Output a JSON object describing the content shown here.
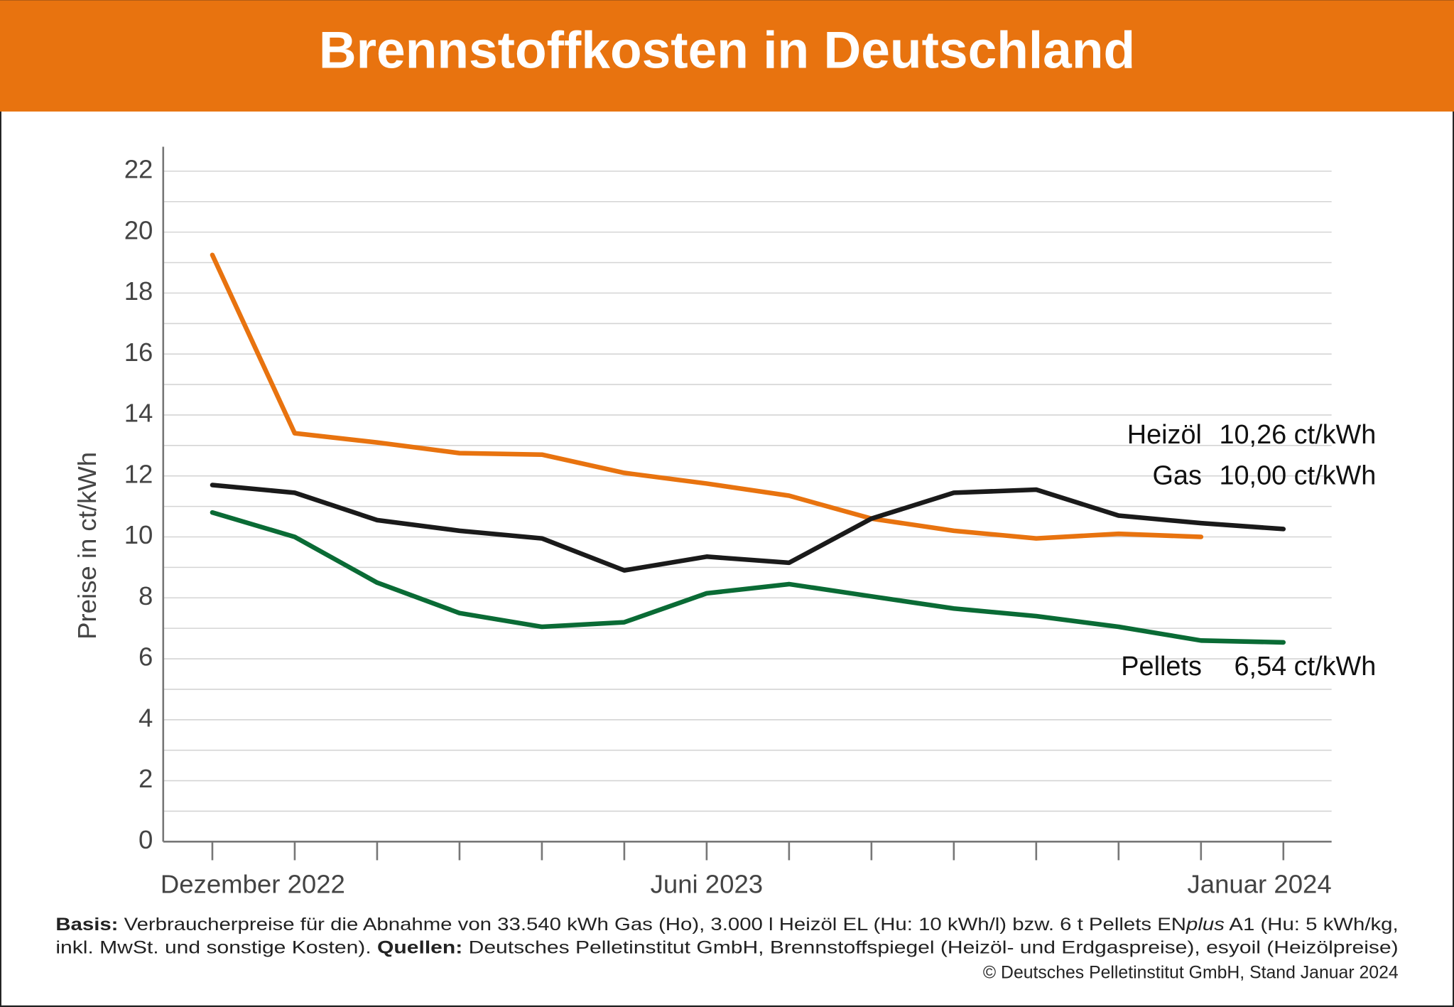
{
  "chart_data": {
    "type": "line",
    "title": "Brennstoffkosten in Deutschland",
    "y_axis_label": "Preise in ct/kWh",
    "categories": [
      "Dezember 2022",
      null,
      null,
      null,
      null,
      null,
      "Juni 2023",
      null,
      null,
      null,
      null,
      null,
      null,
      "Januar 2024"
    ],
    "series": [
      {
        "name": "Gas",
        "color": "#e8730f",
        "values": [
          19.25,
          13.4,
          13.1,
          12.75,
          12.7,
          12.1,
          11.75,
          11.35,
          10.6,
          10.2,
          9.95,
          10.1,
          10.0,
          null
        ],
        "value_labels": [
          null,
          null,
          null,
          null,
          null,
          null,
          null,
          null,
          null,
          null,
          null,
          null,
          "10,00 ct/kWh",
          null
        ]
      },
      {
        "name": "Heizöl",
        "color": "#1a1a1a",
        "values": [
          11.7,
          11.45,
          10.55,
          10.2,
          9.95,
          8.9,
          9.35,
          9.15,
          10.6,
          11.45,
          11.55,
          10.7,
          10.45,
          10.26
        ],
        "value_labels": [
          null,
          null,
          null,
          null,
          null,
          null,
          null,
          null,
          null,
          null,
          null,
          null,
          null,
          "10,26 ct/kWh"
        ]
      },
      {
        "name": "Pellets",
        "color": "#0a6b35",
        "values": [
          10.8,
          10.0,
          8.5,
          7.5,
          7.05,
          7.2,
          8.15,
          8.45,
          8.05,
          7.65,
          7.4,
          7.05,
          6.6,
          6.54
        ],
        "value_labels": [
          null,
          null,
          null,
          null,
          null,
          null,
          null,
          null,
          null,
          null,
          null,
          null,
          null,
          "6,54 ct/kWh"
        ]
      }
    ],
    "ylim": [
      0,
      22.8
    ],
    "yticks": [
      0,
      2,
      4,
      6,
      8,
      10,
      12,
      14,
      16,
      18,
      20,
      22
    ],
    "grid": true,
    "footnote": [
      [
        {
          "text": "Basis:",
          "bold": true
        },
        {
          "text": " Verbraucherpreise für die Abnahme von 33.540 kWh Gas (Ho), 3.000 l Heizöl EL (Hu: 10 kWh/l) bzw. 6 t Pellets EN"
        },
        {
          "text": "plus",
          "italic": true
        },
        {
          "text": " A1 (Hu: 5 kWh/kg,"
        }
      ],
      [
        {
          "text": "inkl. MwSt. und sonstige Kosten). "
        },
        {
          "text": "Quellen:",
          "bold": true
        },
        {
          "text": " Deutsches Pelletinstitut GmbH, Brennstoffspiegel (Heizöl- und Erdgaspreise), esyoil (Heizölpreise)"
        }
      ],
      [
        {
          "text": "© Deutsches Pelletinstitut GmbH, Stand Januar 2024"
        }
      ]
    ]
  }
}
